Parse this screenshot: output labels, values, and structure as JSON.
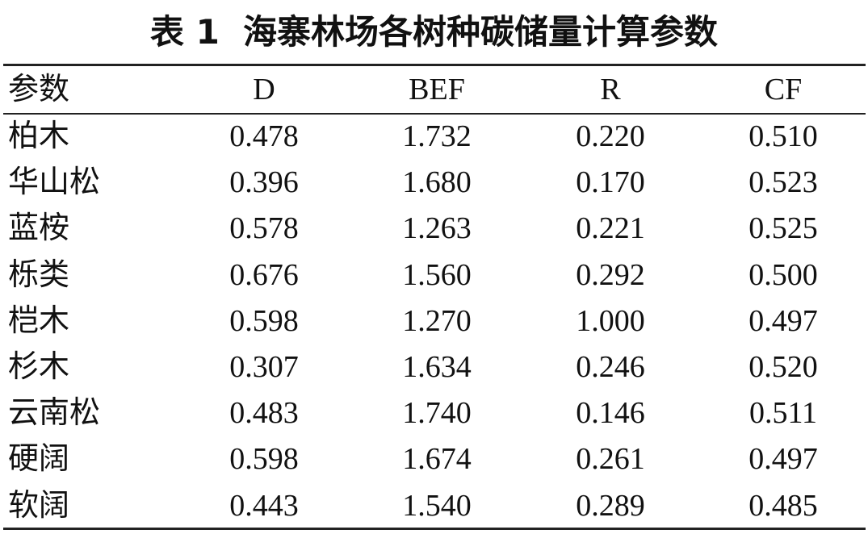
{
  "title": "表 1  海寨林场各树种碳储量计算参数",
  "table": {
    "header": [
      "参数",
      "D",
      "BEF",
      "R",
      "CF"
    ],
    "rows": [
      [
        "柏木",
        "0.478",
        "1.732",
        "0.220",
        "0.510"
      ],
      [
        "华山松",
        "0.396",
        "1.680",
        "0.170",
        "0.523"
      ],
      [
        "蓝桉",
        "0.578",
        "1.263",
        "0.221",
        "0.525"
      ],
      [
        "栎类",
        "0.676",
        "1.560",
        "0.292",
        "0.500"
      ],
      [
        "桤木",
        "0.598",
        "1.270",
        "1.000",
        "0.497"
      ],
      [
        "杉木",
        "0.307",
        "1.634",
        "0.246",
        "0.520"
      ],
      [
        "云南松",
        "0.483",
        "1.740",
        "0.146",
        "0.511"
      ],
      [
        "硬阔",
        "0.598",
        "1.674",
        "0.261",
        "0.497"
      ],
      [
        "软阔",
        "0.443",
        "1.540",
        "0.289",
        "0.485"
      ]
    ]
  }
}
